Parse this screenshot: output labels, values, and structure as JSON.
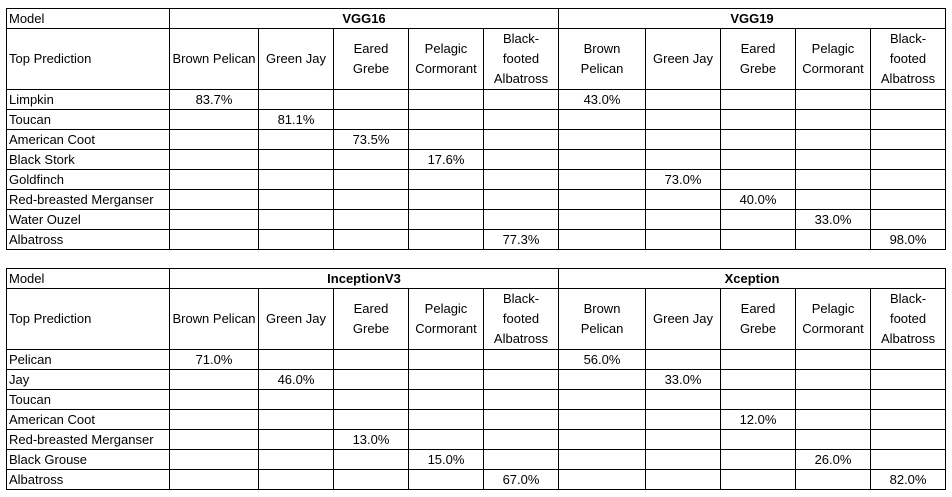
{
  "tables": [
    {
      "model_label": "Model",
      "groups": [
        "VGG16",
        "VGG19"
      ],
      "prediction_label": "Top Prediction",
      "columns": [
        "Brown Pelican",
        "Green Jay",
        "Eared Grebe",
        "Pelagic Cormorant",
        "Black-footed Albatross"
      ],
      "rows": [
        {
          "label": "Limpkin",
          "cells": [
            "83.7%",
            "",
            "",
            "",
            "",
            "43.0%",
            "",
            "",
            "",
            ""
          ]
        },
        {
          "label": "Toucan",
          "cells": [
            "",
            "81.1%",
            "",
            "",
            "",
            "",
            "",
            "",
            "",
            ""
          ]
        },
        {
          "label": "American Coot",
          "cells": [
            "",
            "",
            "73.5%",
            "",
            "",
            "",
            "",
            "",
            "",
            ""
          ]
        },
        {
          "label": "Black Stork",
          "cells": [
            "",
            "",
            "",
            "17.6%",
            "",
            "",
            "",
            "",
            "",
            ""
          ]
        },
        {
          "label": "Goldfinch",
          "cells": [
            "",
            "",
            "",
            "",
            "",
            "",
            "73.0%",
            "",
            "",
            ""
          ]
        },
        {
          "label": "Red-breasted Merganser",
          "cells": [
            "",
            "",
            "",
            "",
            "",
            "",
            "",
            "40.0%",
            "",
            ""
          ]
        },
        {
          "label": "Water Ouzel",
          "cells": [
            "",
            "",
            "",
            "",
            "",
            "",
            "",
            "",
            "33.0%",
            ""
          ]
        },
        {
          "label": "Albatross",
          "cells": [
            "",
            "",
            "",
            "",
            "77.3%",
            "",
            "",
            "",
            "",
            "98.0%"
          ]
        }
      ]
    },
    {
      "model_label": "Model",
      "groups": [
        "InceptionV3",
        "Xception"
      ],
      "prediction_label": "Top Prediction",
      "columns": [
        "Brown Pelican",
        "Green Jay",
        "Eared Grebe",
        "Pelagic Cormorant",
        "Black-footed Albatross"
      ],
      "rows": [
        {
          "label": "Pelican",
          "cells": [
            "71.0%",
            "",
            "",
            "",
            "",
            "56.0%",
            "",
            "",
            "",
            ""
          ]
        },
        {
          "label": "Jay",
          "cells": [
            "",
            "46.0%",
            "",
            "",
            "",
            "",
            "33.0%",
            "",
            "",
            ""
          ]
        },
        {
          "label": "Toucan",
          "cells": [
            "",
            "",
            "",
            "",
            "",
            "",
            "",
            "",
            "",
            ""
          ]
        },
        {
          "label": "American Coot",
          "cells": [
            "",
            "",
            "",
            "",
            "",
            "",
            "",
            "12.0%",
            "",
            ""
          ]
        },
        {
          "label": "Red-breasted Merganser",
          "cells": [
            "",
            "",
            "13.0%",
            "",
            "",
            "",
            "",
            "",
            "",
            ""
          ]
        },
        {
          "label": "Black Grouse",
          "cells": [
            "",
            "",
            "",
            "15.0%",
            "",
            "",
            "",
            "",
            "26.0%",
            ""
          ]
        },
        {
          "label": "Albatross",
          "cells": [
            "",
            "",
            "",
            "",
            "67.0%",
            "",
            "",
            "",
            "",
            "82.0%"
          ]
        }
      ]
    }
  ]
}
